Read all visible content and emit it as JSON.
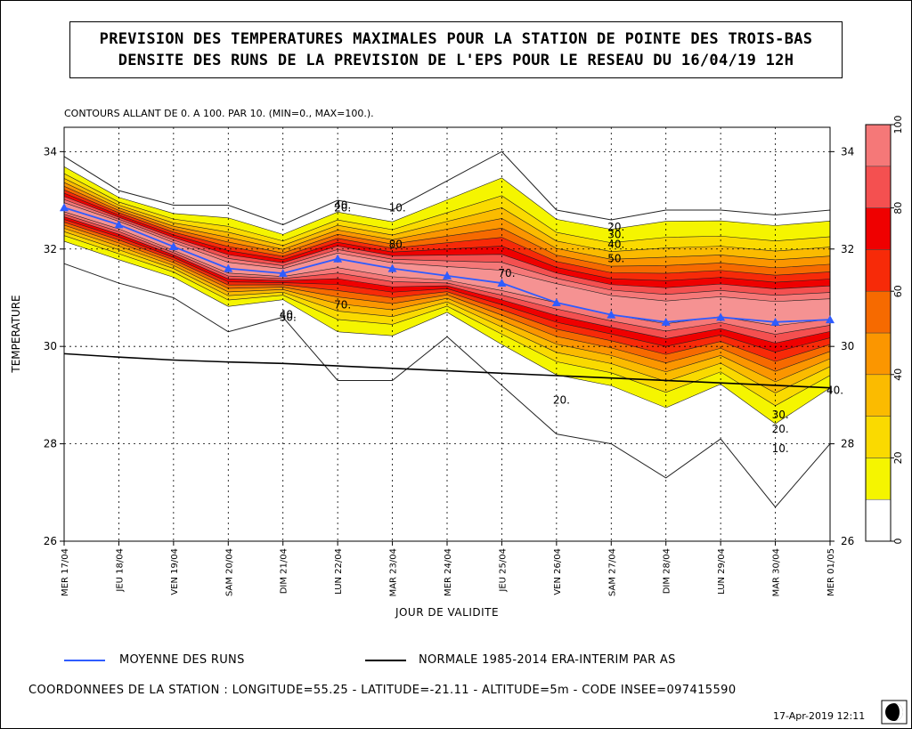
{
  "header": {
    "title_line1": "PREVISION DES TEMPERATURES MAXIMALES POUR LA STATION DE POINTE DES TROIS-BAS",
    "title_line2": "DENSITE DES RUNS DE LA PREVISION DE L'EPS POUR LE RESEAU DU 16/04/19 12H"
  },
  "contour_note": "CONTOURS ALLANT DE 0. A 100. PAR 10. (MIN=0., MAX=100.).",
  "legend": {
    "mean_label": "MOYENNE DES RUNS",
    "normal_label": "NORMALE 1985-2014 ERA-INTERIM PAR AS",
    "mean_color": "#2f5cff",
    "normal_color": "#000000"
  },
  "station_info": "COORDONNEES DE LA STATION : LONGITUDE=55.25 - LATITUDE=-21.11 - ALTITUDE=5m - CODE INSEE=097415590",
  "timestamp": "17-Apr-2019 12:11",
  "chart_data": {
    "type": "heatmap",
    "xlabel": "JOUR DE VALIDITE",
    "ylabel": "TEMPERATURE",
    "categories": [
      "MER 17/04",
      "JEU 18/04",
      "VEN 19/04",
      "SAM 20/04",
      "DIM 21/04",
      "LUN 22/04",
      "MAR 23/04",
      "MER 24/04",
      "JEU 25/04",
      "VEN 26/04",
      "SAM 27/04",
      "DIM 28/04",
      "LUN 29/04",
      "MAR 30/04",
      "MER 01/05"
    ],
    "ylim": [
      26,
      34.5
    ],
    "yticks": [
      26,
      28,
      30,
      32,
      34
    ],
    "grid": true,
    "colorbar": {
      "ticks": [
        0,
        20,
        40,
        60,
        80,
        100
      ],
      "levels": [
        0,
        10,
        20,
        30,
        40,
        50,
        60,
        70,
        80,
        90,
        100
      ],
      "colors": [
        "#ffffff",
        "#f5f500",
        "#fada00",
        "#fbbb00",
        "#fb9600",
        "#f66a00",
        "#f72a08",
        "#ef0000",
        "#f45050",
        "#f57878",
        "#f59292"
      ]
    },
    "envelope": {
      "upper": [
        33.9,
        33.2,
        32.9,
        32.9,
        32.5,
        33.0,
        32.8,
        33.4,
        34.0,
        32.8,
        32.6,
        32.8,
        32.8,
        32.7,
        32.8
      ],
      "lower": [
        31.7,
        31.3,
        31.0,
        30.3,
        30.6,
        29.3,
        29.3,
        30.2,
        29.2,
        28.2,
        28.0,
        27.3,
        28.1,
        26.7,
        28.0
      ]
    },
    "series": [
      {
        "name": "MOYENNE DES RUNS",
        "values": [
          32.85,
          32.5,
          32.05,
          31.6,
          31.5,
          31.8,
          31.6,
          31.45,
          31.3,
          30.9,
          30.65,
          30.5,
          30.6,
          30.5,
          30.55
        ]
      },
      {
        "name": "NORMALE 1985-2014 ERA-INTERIM PAR AS",
        "values": [
          29.85,
          29.78,
          29.72,
          29.68,
          29.65,
          29.6,
          29.55,
          29.5,
          29.45,
          29.4,
          29.35,
          29.3,
          29.25,
          29.2,
          29.15
        ]
      }
    ],
    "contour_labels": [
      {
        "text": "20.",
        "x": "VEN 26/04",
        "y": 28.9
      },
      {
        "text": "40.",
        "x": "MER 01/05",
        "y": 29.1
      },
      {
        "text": "30.",
        "x": "MAR 30/04",
        "y": 28.6
      },
      {
        "text": "20.",
        "x": "MAR 30/04",
        "y": 28.3
      },
      {
        "text": "10.",
        "x": "MAR 30/04",
        "y": 27.9
      },
      {
        "text": "70.",
        "x": "JEU 25/04",
        "y": 31.5
      },
      {
        "text": "80.",
        "x": "MAR 23/04",
        "y": 32.1
      },
      {
        "text": "50.",
        "x": "SAM 27/04",
        "y": 31.8
      },
      {
        "text": "40.",
        "x": "SAM 27/04",
        "y": 32.1
      },
      {
        "text": "30.",
        "x": "SAM 27/04",
        "y": 32.3
      },
      {
        "text": "20.",
        "x": "SAM 27/04",
        "y": 32.45
      },
      {
        "text": "70.",
        "x": "LUN 22/04",
        "y": 30.85
      },
      {
        "text": "40.",
        "x": "DIM 21/04",
        "y": 30.65
      },
      {
        "text": "50.",
        "x": "DIM 21/04",
        "y": 30.6
      },
      {
        "text": "10.",
        "x": "MAR 23/04",
        "y": 32.85
      },
      {
        "text": "20.",
        "x": "LUN 22/04",
        "y": 32.85
      },
      {
        "text": "40.",
        "x": "LUN 22/04",
        "y": 32.9
      }
    ]
  }
}
